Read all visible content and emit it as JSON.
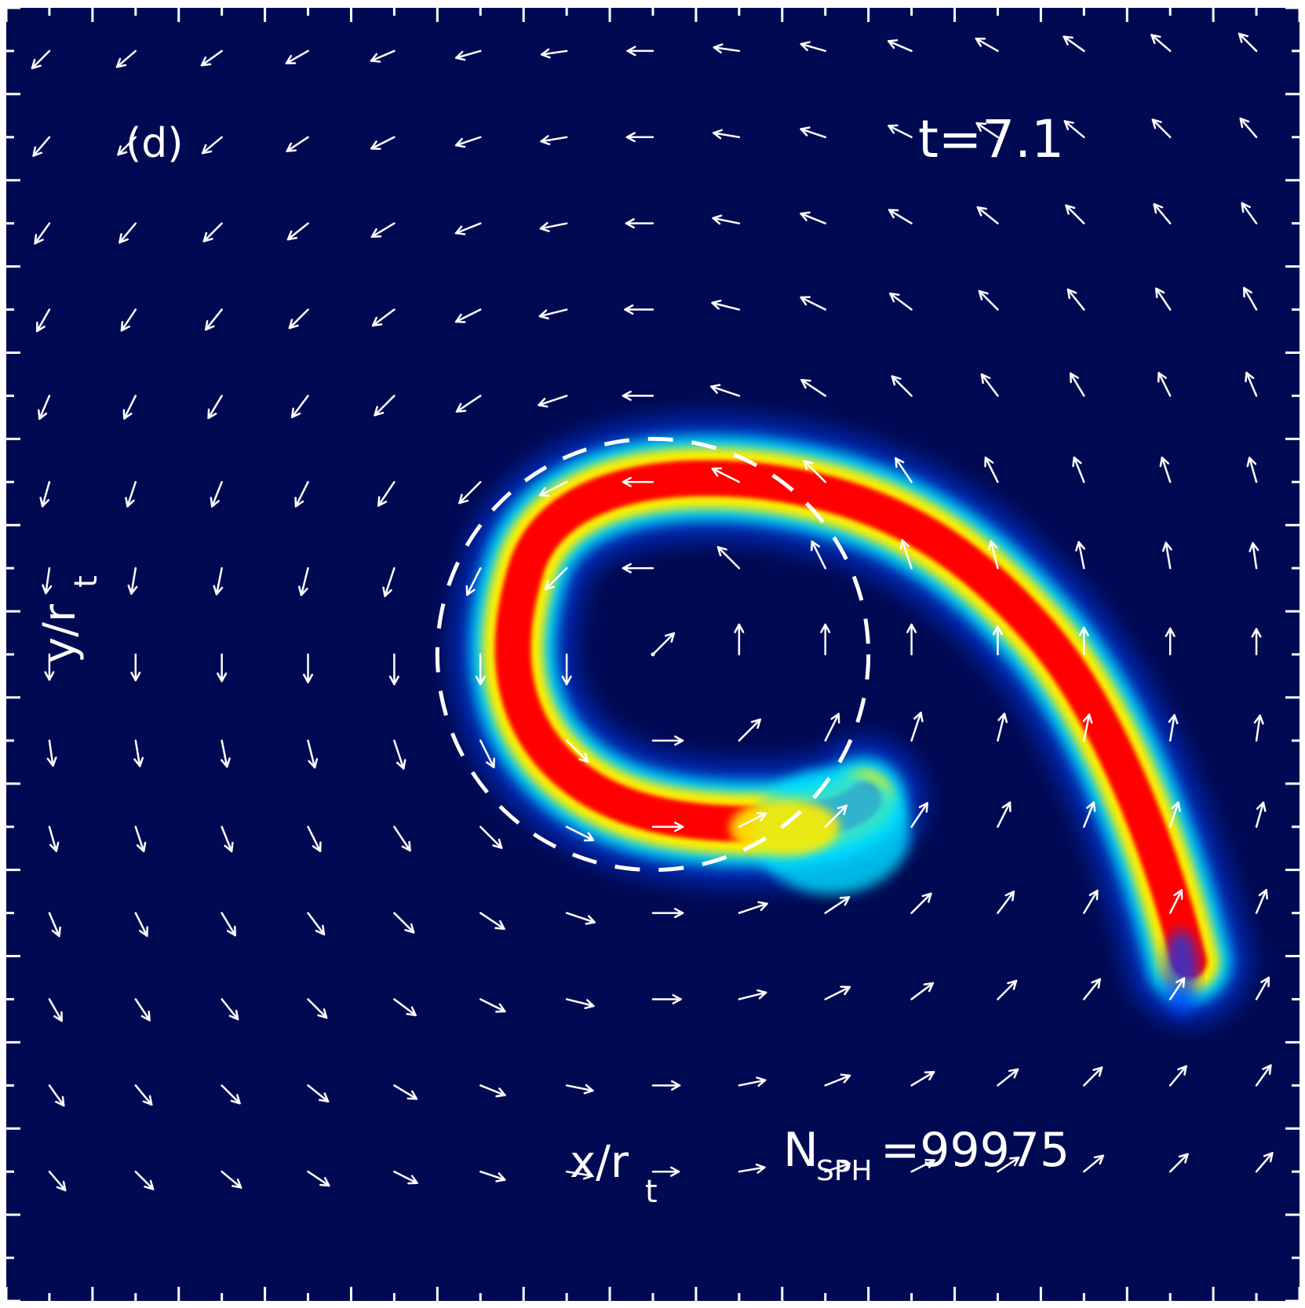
{
  "panel_label": "(d)",
  "time_label": "t=7.1",
  "nsph_label": "N",
  "nsph_subscript": "SPH",
  "nsph_value": "=99975",
  "colors": {
    "background": "#000a52",
    "stream_core": "#ff0000",
    "stream_mid": "#ffee00",
    "stream_outer": "#00e0ff",
    "stream_halo": "#0040ff",
    "arrows": "#ffffff"
  },
  "chart_data": {
    "type": "vector-field",
    "xlabel": "x/r",
    "xlabel_sub": "t",
    "ylabel": "y/r",
    "ylabel_sub": "t",
    "xlim": [
      -1.5,
      1.5
    ],
    "ylim": [
      -1.5,
      1.5
    ],
    "x_tick_labels": [],
    "y_tick_labels": [],
    "grid": false,
    "vortex_center": [
      0,
      0
    ],
    "tidal_circle": {
      "center": [
        0,
        0
      ],
      "radius": 0.5,
      "style": "dashed"
    },
    "arrow_grid": {
      "nx": 15,
      "ny": 14,
      "spacing": 0.2
    }
  }
}
